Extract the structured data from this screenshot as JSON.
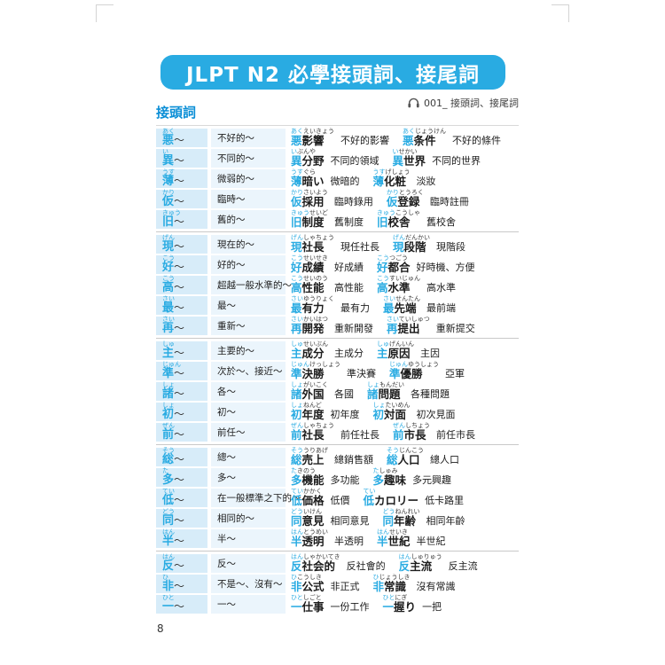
{
  "banner": {
    "title": "JLPT N2 必學接頭詞、接尾詞"
  },
  "audio": {
    "icon": "headphones-icon",
    "label": "001_ 接頭詞、接尾詞"
  },
  "section": {
    "title": "接頭詞"
  },
  "page_number": "8",
  "colors": {
    "banner_blue": "#29abe2",
    "section_blue": "#0a8ed6",
    "prefix_blue": "#29abe2",
    "prefix_col_bg": "#d7ecf9",
    "meaning_col_bg": "#ebf5fc",
    "separator_gray": "#c9c9c9"
  },
  "table": {
    "tilde": "～",
    "rows": [
      {
        "prefix_furigana": "あく",
        "prefix_kanji": "悪",
        "meaning": "不好的～",
        "group_end": false,
        "examples": [
          {
            "furigana_prefix": "あく",
            "furigana_rest": "えいきょう",
            "word_prefix": "悪",
            "word_rest": "影響",
            "gloss": "不好的影響"
          },
          {
            "furigana_prefix": "あく",
            "furigana_rest": "じょうけん",
            "word_prefix": "悪",
            "word_rest": "条件",
            "gloss": "不好的條件"
          }
        ]
      },
      {
        "prefix_furigana": "い",
        "prefix_kanji": "異",
        "meaning": "不同的～",
        "group_end": false,
        "examples": [
          {
            "furigana_prefix": "い",
            "furigana_rest": "ぶんや",
            "word_prefix": "異",
            "word_rest": "分野",
            "gloss": "不同的領域"
          },
          {
            "furigana_prefix": "い",
            "furigana_rest": "せかい",
            "word_prefix": "異",
            "word_rest": "世界",
            "gloss": "不同的世界"
          }
        ]
      },
      {
        "prefix_furigana": "うす",
        "prefix_kanji": "薄",
        "meaning": "微弱的～",
        "group_end": false,
        "examples": [
          {
            "furigana_prefix": "うす",
            "furigana_rest": "ぐら",
            "word_prefix": "薄",
            "word_rest": "暗い",
            "gloss": "微暗的"
          },
          {
            "furigana_prefix": "うす",
            "furigana_rest": "げしょう",
            "word_prefix": "薄",
            "word_rest": "化粧",
            "gloss": "淡妝"
          }
        ]
      },
      {
        "prefix_furigana": "かり",
        "prefix_kanji": "仮",
        "meaning": "臨時～",
        "group_end": false,
        "examples": [
          {
            "furigana_prefix": "かり",
            "furigana_rest": "さいよう",
            "word_prefix": "仮",
            "word_rest": "採用",
            "gloss": "臨時錄用"
          },
          {
            "furigana_prefix": "かり",
            "furigana_rest": "とうろく",
            "word_prefix": "仮",
            "word_rest": "登録",
            "gloss": "臨時註冊"
          }
        ]
      },
      {
        "prefix_furigana": "きゅう",
        "prefix_kanji": "旧",
        "meaning": "舊的～",
        "group_end": true,
        "examples": [
          {
            "furigana_prefix": "きゅう",
            "furigana_rest": "せいど",
            "word_prefix": "旧",
            "word_rest": "制度",
            "gloss": "舊制度"
          },
          {
            "furigana_prefix": "きゅう",
            "furigana_rest": "こうしゃ",
            "word_prefix": "旧",
            "word_rest": "校舎",
            "gloss": "舊校舍"
          }
        ]
      },
      {
        "prefix_furigana": "げん",
        "prefix_kanji": "現",
        "meaning": "現在的～",
        "group_end": false,
        "examples": [
          {
            "furigana_prefix": "げん",
            "furigana_rest": "しゃちょう",
            "word_prefix": "現",
            "word_rest": "社長",
            "gloss": "現任社長"
          },
          {
            "furigana_prefix": "げん",
            "furigana_rest": "だんかい",
            "word_prefix": "現",
            "word_rest": "段階",
            "gloss": "現階段"
          }
        ]
      },
      {
        "prefix_furigana": "こう",
        "prefix_kanji": "好",
        "meaning": "好的～",
        "group_end": false,
        "examples": [
          {
            "furigana_prefix": "こう",
            "furigana_rest": "せいせき",
            "word_prefix": "好",
            "word_rest": "成績",
            "gloss": "好成績"
          },
          {
            "furigana_prefix": "こう",
            "furigana_rest": "つごう",
            "word_prefix": "好",
            "word_rest": "都合",
            "gloss": "好時機、方便"
          }
        ]
      },
      {
        "prefix_furigana": "こう",
        "prefix_kanji": "高",
        "meaning": "超越一般水準的～",
        "group_end": false,
        "examples": [
          {
            "furigana_prefix": "こう",
            "furigana_rest": "せいのう",
            "word_prefix": "高",
            "word_rest": "性能",
            "gloss": "高性能"
          },
          {
            "furigana_prefix": "こう",
            "furigana_rest": "すいじゅん",
            "word_prefix": "高",
            "word_rest": "水準",
            "gloss": "高水準"
          }
        ]
      },
      {
        "prefix_furigana": "さい",
        "prefix_kanji": "最",
        "meaning": "最～",
        "group_end": false,
        "examples": [
          {
            "furigana_prefix": "さい",
            "furigana_rest": "ゆうりょく",
            "word_prefix": "最",
            "word_rest": "有力",
            "gloss": "最有力"
          },
          {
            "furigana_prefix": "さい",
            "furigana_rest": "せんたん",
            "word_prefix": "最",
            "word_rest": "先端",
            "gloss": "最前端"
          }
        ]
      },
      {
        "prefix_furigana": "さい",
        "prefix_kanji": "再",
        "meaning": "重新～",
        "group_end": true,
        "examples": [
          {
            "furigana_prefix": "さい",
            "furigana_rest": "かいはつ",
            "word_prefix": "再",
            "word_rest": "開発",
            "gloss": "重新開發"
          },
          {
            "furigana_prefix": "さい",
            "furigana_rest": "ていしゅつ",
            "word_prefix": "再",
            "word_rest": "提出",
            "gloss": "重新提交"
          }
        ]
      },
      {
        "prefix_furigana": "しゅ",
        "prefix_kanji": "主",
        "meaning": "主要的～",
        "group_end": false,
        "examples": [
          {
            "furigana_prefix": "しゅ",
            "furigana_rest": "せいぶん",
            "word_prefix": "主",
            "word_rest": "成分",
            "gloss": "主成分"
          },
          {
            "furigana_prefix": "しゅ",
            "furigana_rest": "げんいん",
            "word_prefix": "主",
            "word_rest": "原因",
            "gloss": "主因"
          }
        ]
      },
      {
        "prefix_furigana": "じゅん",
        "prefix_kanji": "準",
        "meaning": "次於～、接近～",
        "group_end": false,
        "examples": [
          {
            "furigana_prefix": "じゅん",
            "furigana_rest": "けっしょう",
            "word_prefix": "準",
            "word_rest": "決勝",
            "gloss": "準決賽"
          },
          {
            "furigana_prefix": "じゅん",
            "furigana_rest": "ゆうしょう",
            "word_prefix": "準",
            "word_rest": "優勝",
            "gloss": "亞軍"
          }
        ]
      },
      {
        "prefix_furigana": "しょ",
        "prefix_kanji": "諸",
        "meaning": "各～",
        "group_end": false,
        "examples": [
          {
            "furigana_prefix": "しょ",
            "furigana_rest": "がいこく",
            "word_prefix": "諸",
            "word_rest": "外国",
            "gloss": "各國"
          },
          {
            "furigana_prefix": "しょ",
            "furigana_rest": "もんだい",
            "word_prefix": "諸",
            "word_rest": "問題",
            "gloss": "各種問題"
          }
        ]
      },
      {
        "prefix_furigana": "しょ",
        "prefix_kanji": "初",
        "meaning": "初～",
        "group_end": false,
        "examples": [
          {
            "furigana_prefix": "しょ",
            "furigana_rest": "ねんど",
            "word_prefix": "初",
            "word_rest": "年度",
            "gloss": "初年度"
          },
          {
            "furigana_prefix": "しょ",
            "furigana_rest": "たいめん",
            "word_prefix": "初",
            "word_rest": "対面",
            "gloss": "初次見面"
          }
        ]
      },
      {
        "prefix_furigana": "ぜん",
        "prefix_kanji": "前",
        "meaning": "前任～",
        "group_end": true,
        "examples": [
          {
            "furigana_prefix": "ぜん",
            "furigana_rest": "しゃちょう",
            "word_prefix": "前",
            "word_rest": "社長",
            "gloss": "前任社長"
          },
          {
            "furigana_prefix": "ぜん",
            "furigana_rest": "しちょう",
            "word_prefix": "前",
            "word_rest": "市長",
            "gloss": "前任市長"
          }
        ]
      },
      {
        "prefix_furigana": "そう",
        "prefix_kanji": "総",
        "meaning": "總～",
        "group_end": false,
        "examples": [
          {
            "furigana_prefix": "そう",
            "furigana_rest": "うりあげ",
            "word_prefix": "総",
            "word_rest": "売上",
            "gloss": "總銷售額"
          },
          {
            "furigana_prefix": "そう",
            "furigana_rest": "じんこう",
            "word_prefix": "総",
            "word_rest": "人口",
            "gloss": "總人口"
          }
        ]
      },
      {
        "prefix_furigana": "た",
        "prefix_kanji": "多",
        "meaning": "多～",
        "group_end": false,
        "examples": [
          {
            "furigana_prefix": "た",
            "furigana_rest": "きのう",
            "word_prefix": "多",
            "word_rest": "機能",
            "gloss": "多功能"
          },
          {
            "furigana_prefix": "た",
            "furigana_rest": "しゅみ",
            "word_prefix": "多",
            "word_rest": "趣味",
            "gloss": "多元興趣"
          }
        ]
      },
      {
        "prefix_furigana": "てい",
        "prefix_kanji": "低",
        "meaning": "在一般標準之下的～",
        "group_end": false,
        "examples": [
          {
            "furigana_prefix": "てい",
            "furigana_rest": "かかく",
            "word_prefix": "低",
            "word_rest": "価格",
            "gloss": "低價"
          },
          {
            "furigana_prefix": "てい",
            "furigana_rest": "",
            "word_prefix": "低",
            "word_rest": "カロリー",
            "gloss": "低卡路里"
          }
        ]
      },
      {
        "prefix_furigana": "どう",
        "prefix_kanji": "同",
        "meaning": "相同的～",
        "group_end": false,
        "examples": [
          {
            "furigana_prefix": "どう",
            "furigana_rest": "いけん",
            "word_prefix": "同",
            "word_rest": "意見",
            "gloss": "相同意見"
          },
          {
            "furigana_prefix": "どう",
            "furigana_rest": "ねんれい",
            "word_prefix": "同",
            "word_rest": "年齢",
            "gloss": "相同年齡"
          }
        ]
      },
      {
        "prefix_furigana": "はん",
        "prefix_kanji": "半",
        "meaning": "半～",
        "group_end": true,
        "examples": [
          {
            "furigana_prefix": "はん",
            "furigana_rest": "とうめい",
            "word_prefix": "半",
            "word_rest": "透明",
            "gloss": "半透明"
          },
          {
            "furigana_prefix": "はん",
            "furigana_rest": "せいき",
            "word_prefix": "半",
            "word_rest": "世紀",
            "gloss": "半世紀"
          }
        ]
      },
      {
        "prefix_furigana": "はん",
        "prefix_kanji": "反",
        "meaning": "反～",
        "group_end": false,
        "examples": [
          {
            "furigana_prefix": "はん",
            "furigana_rest": "しゃかいてき",
            "word_prefix": "反",
            "word_rest": "社会的",
            "gloss": "反社會的"
          },
          {
            "furigana_prefix": "はん",
            "furigana_rest": "しゅりゅう",
            "word_prefix": "反",
            "word_rest": "主流",
            "gloss": "反主流"
          }
        ]
      },
      {
        "prefix_furigana": "ひ",
        "prefix_kanji": "非",
        "meaning": "不是～、沒有～",
        "group_end": false,
        "examples": [
          {
            "furigana_prefix": "ひ",
            "furigana_rest": "こうしき",
            "word_prefix": "非",
            "word_rest": "公式",
            "gloss": "非正式"
          },
          {
            "furigana_prefix": "ひ",
            "furigana_rest": "じょうしき",
            "word_prefix": "非",
            "word_rest": "常識",
            "gloss": "沒有常識"
          }
        ]
      },
      {
        "prefix_furigana": "ひと",
        "prefix_kanji": "一",
        "meaning": "一～",
        "group_end": false,
        "examples": [
          {
            "furigana_prefix": "ひと",
            "furigana_rest": "しごと",
            "word_prefix": "一",
            "word_rest": "仕事",
            "gloss": "一份工作"
          },
          {
            "furigana_prefix": "ひと",
            "furigana_rest": "にぎ",
            "word_prefix": "一",
            "word_rest": "握り",
            "gloss": "一把"
          }
        ]
      }
    ]
  }
}
